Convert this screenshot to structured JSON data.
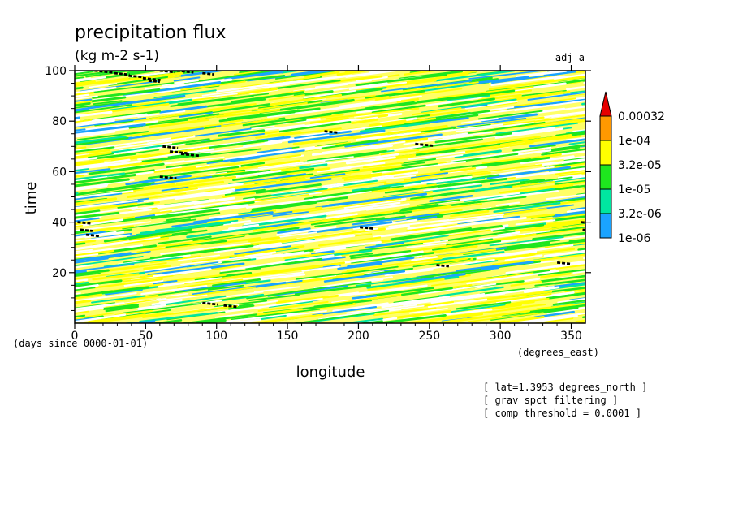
{
  "chart_data": {
    "type": "heatmap",
    "title": "precipitation flux",
    "units": "(kg m-2 s-1)",
    "label_right": "adj_a",
    "xlabel": "longitude",
    "ylabel": "time",
    "x_units": "(degrees_east)",
    "y_units": "(days since 0000-01-01)",
    "xlim": [
      0,
      360
    ],
    "ylim": [
      0,
      100
    ],
    "xticks": [
      0,
      50,
      100,
      150,
      200,
      250,
      300,
      350
    ],
    "yticks": [
      20,
      40,
      60,
      80,
      100
    ],
    "colorbar": {
      "levels": [
        "1e-06",
        "3.2e-06",
        "1e-05",
        "3.2e-05",
        "1e-04",
        "0.00032"
      ],
      "colors": [
        "#1aa3ff",
        "#00e6a0",
        "#1ee61e",
        "#ffff00",
        "#ff9900",
        "#e60000"
      ],
      "extend": "max"
    },
    "notes": [
      "[ lat=1.3953 degrees_north ]",
      "[ grav spct filtering ]",
      "[ comp threshold = 0.0001 ]"
    ]
  }
}
